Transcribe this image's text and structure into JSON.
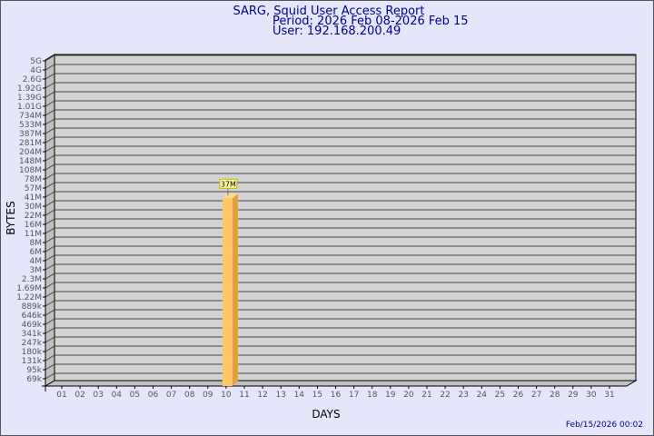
{
  "chart_data": {
    "type": "bar",
    "title": "SARG, Squid User Access Report",
    "subtitle": [
      "Period: 2026 Feb 08-2026 Feb 15",
      "User: 192.168.200.49"
    ],
    "xlabel": "DAYS",
    "ylabel": "BYTES",
    "y_scale": "log",
    "y_tick_labels": [
      "5G",
      "4G",
      "2.6G",
      "1.92G",
      "1.39G",
      "1.01G",
      "734M",
      "533M",
      "387M",
      "281M",
      "204M",
      "148M",
      "108M",
      "78M",
      "57M",
      "41M",
      "30M",
      "22M",
      "16M",
      "11M",
      "8M",
      "6M",
      "4M",
      "3M",
      "2.3M",
      "1.69M",
      "1.22M",
      "889k",
      "646k",
      "469k",
      "341k",
      "247k",
      "180k",
      "131k",
      "95k",
      "69k"
    ],
    "categories": [
      "01",
      "02",
      "03",
      "04",
      "05",
      "06",
      "07",
      "08",
      "09",
      "10",
      "11",
      "12",
      "13",
      "14",
      "15",
      "16",
      "17",
      "18",
      "19",
      "20",
      "21",
      "22",
      "23",
      "24",
      "25",
      "26",
      "27",
      "28",
      "29",
      "30",
      "31"
    ],
    "bars": [
      {
        "day": "10",
        "value": "37M",
        "label": "37M"
      }
    ],
    "grid": true,
    "colors": {
      "bar": "#ffc864",
      "bar_side": "#e0a040",
      "plot_bg": "#d3d3d3",
      "title": "#00008b"
    }
  },
  "footer": {
    "timestamp": "Feb/15/2026 00:02"
  }
}
